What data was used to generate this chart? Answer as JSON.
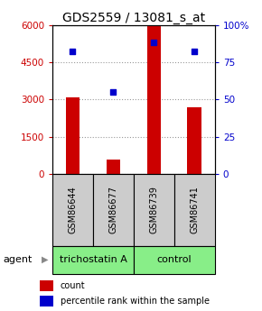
{
  "title": "GDS2559 / 13081_s_at",
  "samples": [
    "GSM86644",
    "GSM86677",
    "GSM86739",
    "GSM86741"
  ],
  "counts": [
    3100,
    600,
    6000,
    2700
  ],
  "percentiles": [
    82,
    55,
    88,
    82
  ],
  "ylim_left": [
    0,
    6000
  ],
  "ylim_right": [
    0,
    100
  ],
  "yticks_left": [
    0,
    1500,
    3000,
    4500,
    6000
  ],
  "yticks_right": [
    0,
    25,
    50,
    75,
    100
  ],
  "ytick_labels_right": [
    "0",
    "25",
    "50",
    "75",
    "100%"
  ],
  "bar_color": "#cc0000",
  "dot_color": "#0000cc",
  "group_labels": [
    "trichostatin A",
    "control"
  ],
  "group_color": "#88ee88",
  "sample_box_color": "#cccccc",
  "grid_color": "#999999",
  "bar_width": 0.35,
  "agent_label": "agent",
  "legend_count_label": "count",
  "legend_pct_label": "percentile rank within the sample",
  "title_fontsize": 10,
  "tick_fontsize": 7.5,
  "sample_fontsize": 7,
  "group_fontsize": 8,
  "legend_fontsize": 7
}
